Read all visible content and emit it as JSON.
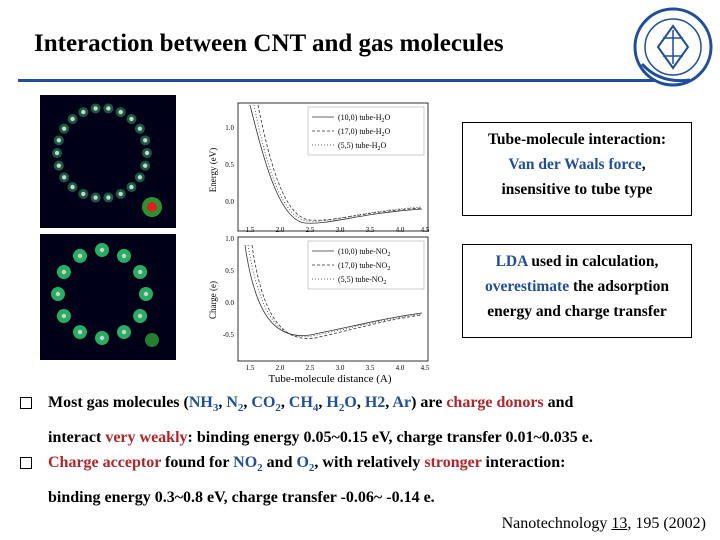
{
  "slide": {
    "title": "Interaction between CNT and gas molecules",
    "colors": {
      "accent": "#1f4e9c",
      "highlight": "#b0262b",
      "molecule_bg": "#000018"
    }
  },
  "plot": {
    "ylabel_top": "Energy (eV)",
    "ylabel_bottom": "Charge (e)",
    "xlabel": "Tube-molecule distance (A)",
    "top_yticks": [
      "1.0",
      "0.5",
      "0.0"
    ],
    "bottom_yticks": [
      "1.0",
      "0.5",
      "0.0",
      "-0.5"
    ],
    "xticks": [
      "1.5",
      "2.0",
      "2.5",
      "3.0",
      "3.5",
      "4.0",
      "4.5"
    ],
    "legend_top": [
      "(10,0) tube-H",
      "(17,0) tube-H",
      "(5,5) tube-H"
    ],
    "legend_top_suffix": "O",
    "legend_bottom": [
      "(10,0) tube-NO",
      "(17,0) tube-NO",
      "(5,5) tube-NO"
    ],
    "legend_sub_h2o": "2",
    "legend_sub_no2": "2"
  },
  "box1": {
    "line1": "Tube-molecule interaction:",
    "line2": "Van der Waals force",
    "line2_tail": ",",
    "line3": "insensitive to tube type"
  },
  "box2": {
    "p1": "LDA",
    "p2": " used in calculation,",
    "p3": "overestimate",
    "p4": " the adsorption",
    "p5": "energy and charge transfer"
  },
  "bullet1": {
    "t1": "Most gas molecules (",
    "m1": "NH",
    "m1s": "3",
    "c1": ", ",
    "m2": "N",
    "m2s": "2",
    "c2": ", ",
    "m3": "CO",
    "m3s": "2",
    "c3": ", ",
    "m4": "CH",
    "m4s": "4",
    "c4": ", ",
    "m5": "H",
    "m5s": "2",
    "m5b": "O",
    "c5": ", ",
    "m6": "H2",
    "c6": ", ",
    "m7": "Ar",
    "t2": ") are ",
    "t3": "charge donors",
    "t4": " and",
    "l2a": "interact ",
    "l2b": "very weakly",
    "l2c": ": binding energy 0.05~0.15 eV, charge transfer 0.01~0.035 e."
  },
  "bullet2": {
    "t1": "Charge acceptor",
    "t2": " found for ",
    "m1": "NO",
    "m1s": "2",
    "t3": " and ",
    "m2": "O",
    "m2s": "2",
    "t4": ", with relatively ",
    "t5": "stronger",
    "t6": " interaction:",
    "l2": "binding energy 0.3~0.8 eV, charge transfer -0.06~ -0.14 e."
  },
  "reference": {
    "journal": "Nanotechnology ",
    "volume": "13",
    "pages": ", 195 (2002)"
  }
}
